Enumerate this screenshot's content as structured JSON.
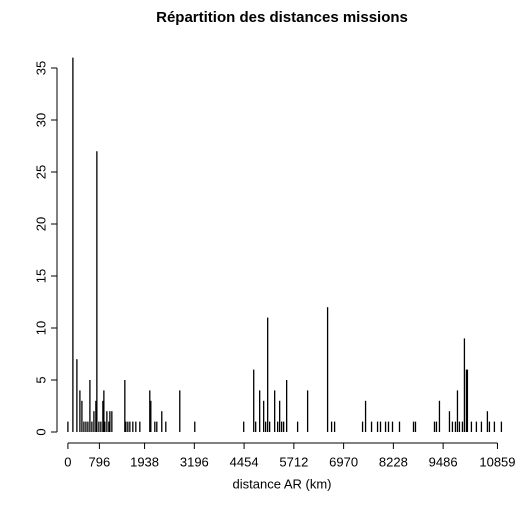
{
  "chart_data": {
    "type": "bar",
    "title": "Répartition des distances missions",
    "xlabel": "distance AR (km)",
    "x": [
      0,
      126,
      227,
      303,
      354,
      404,
      455,
      505,
      556,
      606,
      657,
      707,
      732,
      783,
      833,
      884,
      909,
      934,
      985,
      1035,
      1061,
      1111,
      1439,
      1465,
      1515,
      1566,
      1641,
      1717,
      1818,
      2070,
      2096,
      2197,
      2247,
      2373,
      2475,
      2828,
      3207,
      4444,
      4697,
      4747,
      4848,
      4949,
      4999,
      5050,
      5100,
      5227,
      5303,
      5353,
      5404,
      5454,
      5530,
      5807,
      6060,
      6565,
      6666,
      6742,
      7449,
      7525,
      7676,
      7828,
      7903,
      8030,
      8105,
      8206,
      8383,
      8737,
      8787,
      9267,
      9317,
      9393,
      9646,
      9721,
      9797,
      9848,
      9898,
      9974,
      10024,
      10075,
      10100,
      10201,
      10327,
      10454,
      10605,
      10656,
      10782,
      10959
    ],
    "values": [
      1,
      36,
      7,
      4,
      3,
      1,
      1,
      1,
      5,
      1,
      2,
      3,
      27,
      1,
      1,
      3,
      4,
      1,
      2,
      1,
      2,
      2,
      5,
      1,
      1,
      1,
      1,
      1,
      1,
      4,
      3,
      1,
      1,
      2,
      1,
      4,
      1,
      1,
      6,
      1,
      4,
      3,
      1,
      11,
      1,
      4,
      1,
      3,
      1,
      1,
      5,
      1,
      4,
      12,
      1,
      1,
      1,
      3,
      1,
      1,
      1,
      1,
      1,
      1,
      1,
      1,
      1,
      1,
      1,
      3,
      2,
      1,
      1,
      4,
      1,
      1,
      9,
      6,
      6,
      1,
      1,
      1,
      2,
      1,
      1,
      1
    ],
    "color": "#000000",
    "xlim": [
      -200,
      11050
    ],
    "xticks": [
      0,
      796,
      1938,
      3196,
      4454,
      5712,
      6970,
      8228,
      9486,
      10859
    ],
    "ylim": [
      0,
      35
    ],
    "yticks": [
      0,
      5,
      10,
      15,
      20,
      25,
      30,
      35
    ]
  }
}
